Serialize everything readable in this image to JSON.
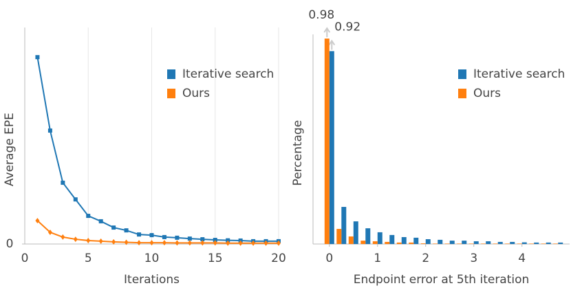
{
  "chart_data": [
    {
      "type": "line",
      "x_label": "Iterations",
      "y_label": "Average EPE",
      "x": [
        1,
        2,
        3,
        4,
        5,
        6,
        7,
        8,
        9,
        10,
        11,
        12,
        13,
        14,
        15,
        16,
        17,
        18,
        19,
        20
      ],
      "series": [
        {
          "name": "Iterative search",
          "color": "#1f77b4",
          "values": [
            0.863,
            0.524,
            0.283,
            0.206,
            0.13,
            0.105,
            0.076,
            0.063,
            0.044,
            0.041,
            0.032,
            0.029,
            0.025,
            0.022,
            0.019,
            0.017,
            0.016,
            0.013,
            0.013,
            0.013
          ]
        },
        {
          "name": "Ours",
          "color": "#ff7f0e",
          "values": [
            0.108,
            0.054,
            0.032,
            0.022,
            0.016,
            0.013,
            0.01,
            0.008,
            0.006,
            0.006,
            0.006,
            0.005,
            0.005,
            0.005,
            0.005,
            0.004,
            0.004,
            0.004,
            0.004,
            0.004
          ]
        }
      ],
      "xlim": [
        0,
        20
      ],
      "xticks": [
        0,
        5,
        10,
        15,
        20
      ],
      "ylim": [
        0,
        1
      ],
      "yticks": [
        0
      ],
      "grid": true,
      "legend": "upper right"
    },
    {
      "type": "bar",
      "x_label": "Endpoint error at 5th iteration",
      "y_label": "Percentage",
      "x": [
        0,
        0.25,
        0.5,
        0.75,
        1,
        1.25,
        1.5,
        1.75,
        2,
        2.25,
        2.5,
        2.75,
        3,
        3.25,
        3.5,
        3.75,
        4,
        4.25,
        4.5,
        4.75
      ],
      "series": [
        {
          "name": "Iterative search",
          "color": "#1f77b4",
          "values": [
            0.92,
            0.177,
            0.108,
            0.075,
            0.056,
            0.043,
            0.033,
            0.03,
            0.023,
            0.02,
            0.016,
            0.016,
            0.013,
            0.013,
            0.01,
            0.01,
            0.008,
            0.007,
            0.007,
            0.007
          ]
        },
        {
          "name": "Ours",
          "color": "#ff7f0e",
          "values": [
            0.98,
            0.072,
            0.036,
            0.016,
            0.013,
            0.01,
            0.007,
            0.007,
            0.003,
            0.002,
            0.002,
            0.002,
            0.002,
            0.002,
            0.002,
            0.002,
            0.002,
            0.002,
            0.002,
            0.002
          ]
        }
      ],
      "xlim": [
        -0.34,
        4.99
      ],
      "xticks": [
        0,
        1,
        2,
        3,
        4
      ],
      "ylim": [
        0,
        1
      ],
      "grid": false,
      "legend": "upper right"
    }
  ]
}
